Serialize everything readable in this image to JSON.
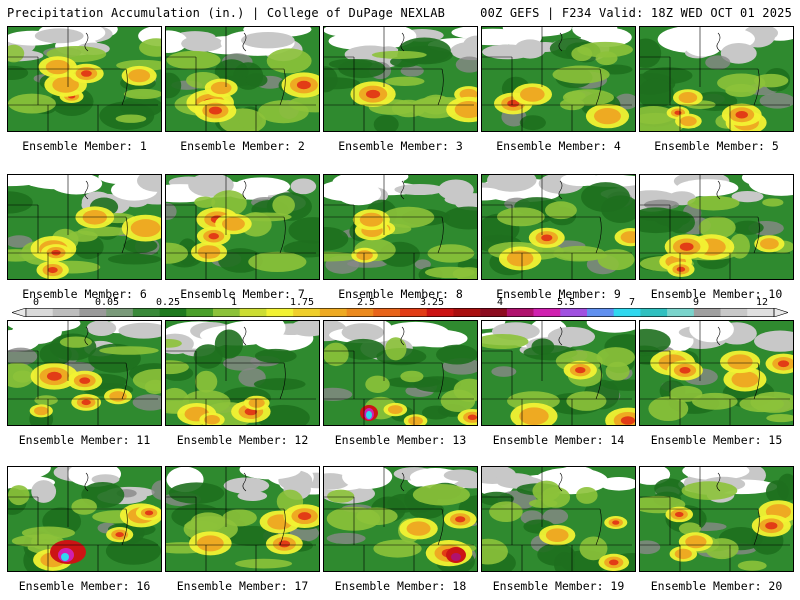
{
  "header": {
    "title": "Precipitation Accumulation (in.) | College of DuPage NEXLAB",
    "run_info": "00Z GEFS | F234 Valid: 18Z WED OCT 01 2025"
  },
  "colorbar": {
    "labels": [
      "0",
      "0.05",
      "0.25",
      "1",
      "1.75",
      "2.5",
      "3.25",
      "4",
      "5.5",
      "7",
      "9",
      "12"
    ],
    "colors": [
      "#d9d9d9",
      "#bdbdbd",
      "#9a9a9a",
      "#7a9a7a",
      "#3a8a3a",
      "#1e7a1e",
      "#4aa02a",
      "#8cc23a",
      "#ccdd33",
      "#f2f233",
      "#f0cf2a",
      "#eeaa22",
      "#ec8a1e",
      "#e8641a",
      "#e23c16",
      "#cc1414",
      "#aa1010",
      "#8c0c20",
      "#b0126e",
      "#d020b0",
      "#a050e0",
      "#6090f0",
      "#30d8f0",
      "#30c0c0",
      "#7ad4cc",
      "#a0a0a0",
      "#c8c8c8",
      "#e0e0e0"
    ]
  },
  "members": [
    {
      "label": "Ensemble Member: 1"
    },
    {
      "label": "Ensemble Member: 2"
    },
    {
      "label": "Ensemble Member: 3"
    },
    {
      "label": "Ensemble Member: 4"
    },
    {
      "label": "Ensemble Member: 5"
    },
    {
      "label": "Ensemble Member: 6"
    },
    {
      "label": "Ensemble Member: 7"
    },
    {
      "label": "Ensemble Member: 8"
    },
    {
      "label": "Ensemble Member: 9"
    },
    {
      "label": "Ensemble Member: 10"
    },
    {
      "label": "Ensemble Member: 11"
    },
    {
      "label": "Ensemble Member: 12"
    },
    {
      "label": "Ensemble Member: 13"
    },
    {
      "label": "Ensemble Member: 14"
    },
    {
      "label": "Ensemble Member: 15"
    },
    {
      "label": "Ensemble Member: 16"
    },
    {
      "label": "Ensemble Member: 17"
    },
    {
      "label": "Ensemble Member: 18"
    },
    {
      "label": "Ensemble Member: 19"
    },
    {
      "label": "Ensemble Member: 20"
    }
  ]
}
